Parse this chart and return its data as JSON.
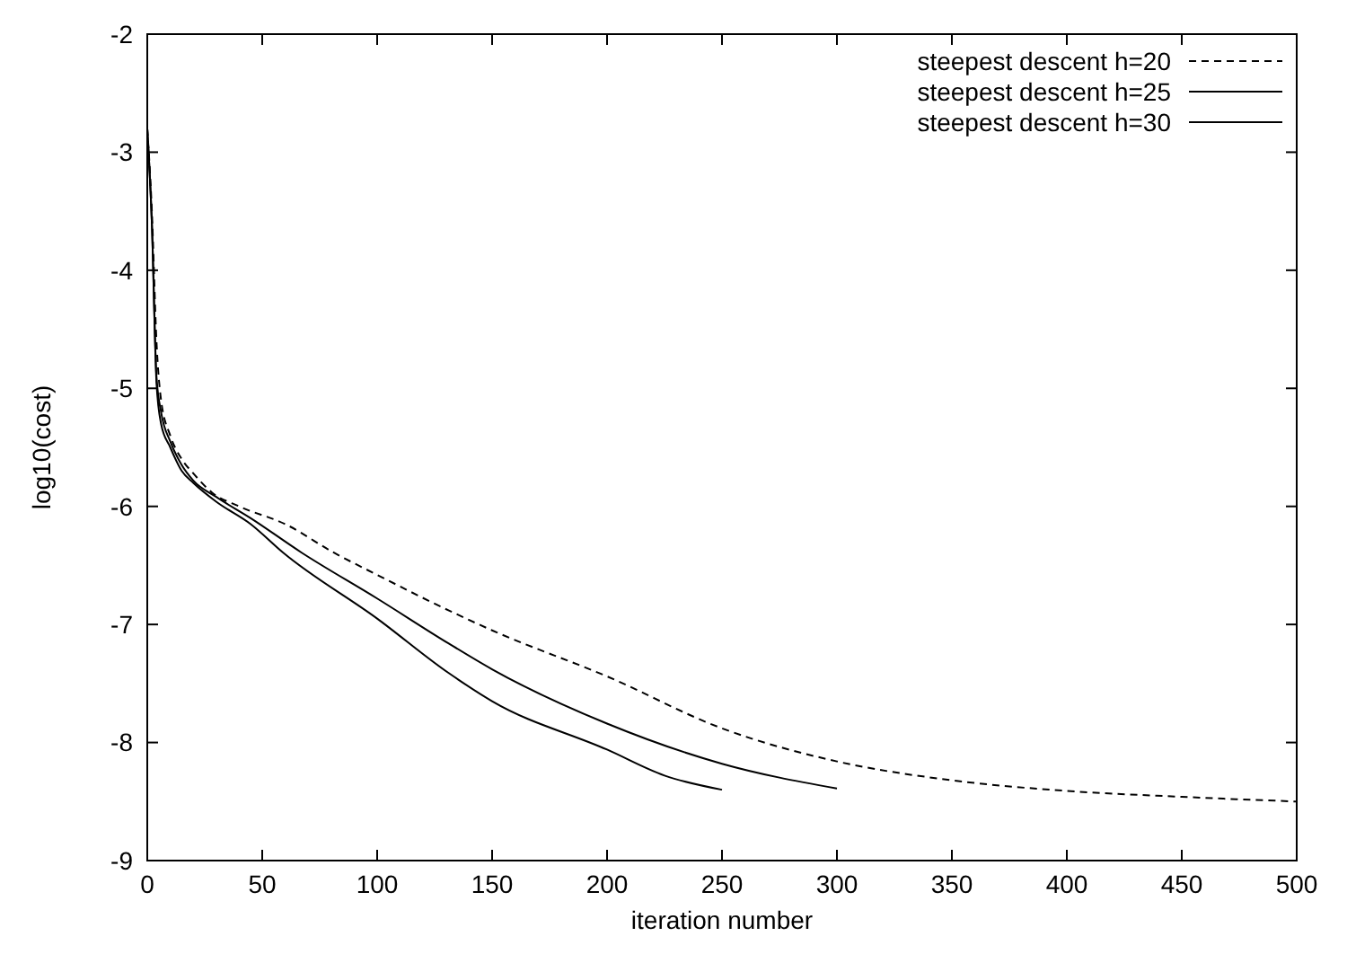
{
  "chart_data": {
    "type": "line",
    "xlabel": "iteration number",
    "ylabel": "log10(cost)",
    "xlim": [
      0,
      500
    ],
    "ylim": [
      -9,
      -2
    ],
    "xticks": [
      0,
      50,
      100,
      150,
      200,
      250,
      300,
      350,
      400,
      450,
      500
    ],
    "yticks": [
      -9,
      -8,
      -7,
      -6,
      -5,
      -4,
      -3,
      -2
    ],
    "legend": "top right",
    "grid": false,
    "marker": "none",
    "series": [
      {
        "name": "steepest descent h=20",
        "color": "#000000",
        "line_style": "dashed",
        "x": [
          0,
          2,
          4,
          6,
          10,
          15,
          20,
          28,
          40,
          60,
          81,
          100,
          131,
          150,
          200,
          250,
          300,
          350,
          400,
          450,
          500
        ],
        "values": [
          -2.8,
          -3.5,
          -4.6,
          -5.1,
          -5.4,
          -5.6,
          -5.72,
          -5.88,
          -6.0,
          -6.15,
          -6.39,
          -6.58,
          -6.88,
          -7.05,
          -7.44,
          -7.88,
          -8.16,
          -8.32,
          -8.41,
          -8.46,
          -8.5
        ]
      },
      {
        "name": "steepest descent h=25",
        "color": "#000000",
        "line_style": "solid",
        "x": [
          0,
          2,
          4,
          6,
          10,
          15,
          20,
          30,
          45,
          67,
          100,
          131,
          150,
          200,
          250,
          300
        ],
        "values": [
          -2.8,
          -3.6,
          -4.9,
          -5.2,
          -5.45,
          -5.65,
          -5.78,
          -5.92,
          -6.1,
          -6.39,
          -6.78,
          -7.16,
          -7.38,
          -7.84,
          -8.18,
          -8.39
        ]
      },
      {
        "name": "steepest descent h=30",
        "color": "#000000",
        "line_style": "solid",
        "x": [
          0,
          2,
          4,
          6,
          10,
          15,
          20,
          30,
          45,
          59,
          100,
          131,
          150,
          200,
          225,
          250
        ],
        "values": [
          -2.8,
          -3.6,
          -4.95,
          -5.3,
          -5.5,
          -5.7,
          -5.8,
          -5.96,
          -6.15,
          -6.39,
          -6.95,
          -7.41,
          -7.65,
          -8.06,
          -8.28,
          -8.4
        ]
      }
    ]
  }
}
